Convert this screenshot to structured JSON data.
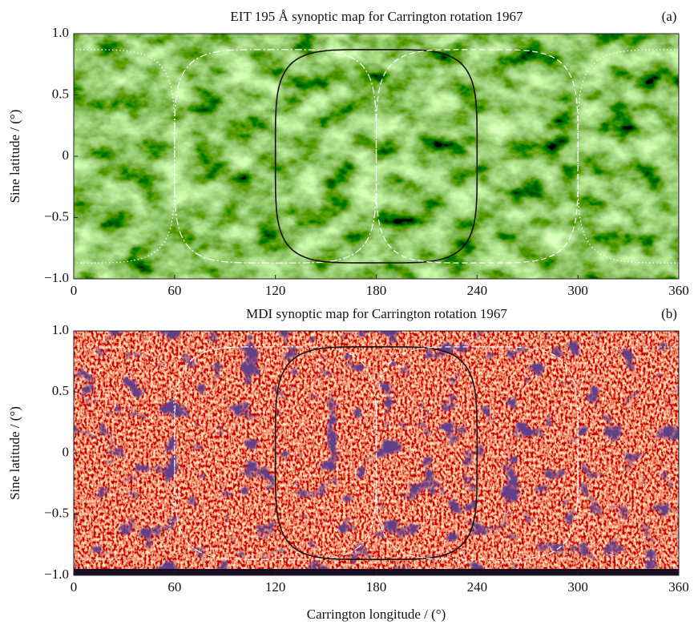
{
  "chart_data": [
    {
      "type": "map",
      "title": "EIT 195 Å synoptic map for Carrington rotation 1967",
      "panel_label": "(a)",
      "ylabel": "Sine latitude / (°)",
      "colormap": "green",
      "xlim": [
        0,
        360
      ],
      "ylim": [
        -1,
        1
      ],
      "xticks": [
        0,
        60,
        120,
        180,
        240,
        300,
        360
      ],
      "yticks": [
        {
          "value": 1,
          "label": "1.0"
        },
        0.5,
        0,
        {
          "value": -0.5,
          "label": "−0.5"
        },
        {
          "value": -1,
          "label": "−1.0"
        }
      ],
      "overlays": [
        {
          "center": 0,
          "color": "#ffffff",
          "style": "dotted"
        },
        {
          "center": 120,
          "color": "#ffffff",
          "style": "dashdot"
        },
        {
          "center": 180,
          "color": "#111111",
          "style": "solid"
        },
        {
          "center": 240,
          "color": "#ffffff",
          "style": "dashed"
        },
        {
          "center": 360,
          "color": "#ffffff",
          "style": "dotted"
        }
      ]
    },
    {
      "type": "map",
      "title": "MDI synoptic map for Carrington rotation 1967",
      "panel_label": "(b)",
      "ylabel": "Sine latitude / (°)",
      "xlabel": "Carrington longitude / (°)",
      "colormap": "red",
      "xlim": [
        0,
        360
      ],
      "ylim": [
        -1,
        1
      ],
      "xticks": [
        0,
        60,
        120,
        180,
        240,
        300,
        360
      ],
      "yticks": [
        {
          "value": 1,
          "label": "1.0"
        },
        0.5,
        0,
        {
          "value": -0.5,
          "label": "−0.5"
        },
        {
          "value": -1,
          "label": "−1.0"
        }
      ],
      "overlays": [
        {
          "center": 0,
          "color": "#ffffff",
          "style": "dotted"
        },
        {
          "center": 120,
          "color": "#ffffff",
          "style": "dashdot"
        },
        {
          "center": 180,
          "color": "#111111",
          "style": "solid"
        },
        {
          "center": 240,
          "color": "#ffffff",
          "style": "dashed"
        },
        {
          "center": 360,
          "color": "#ffffff",
          "style": "dotted"
        }
      ]
    }
  ]
}
